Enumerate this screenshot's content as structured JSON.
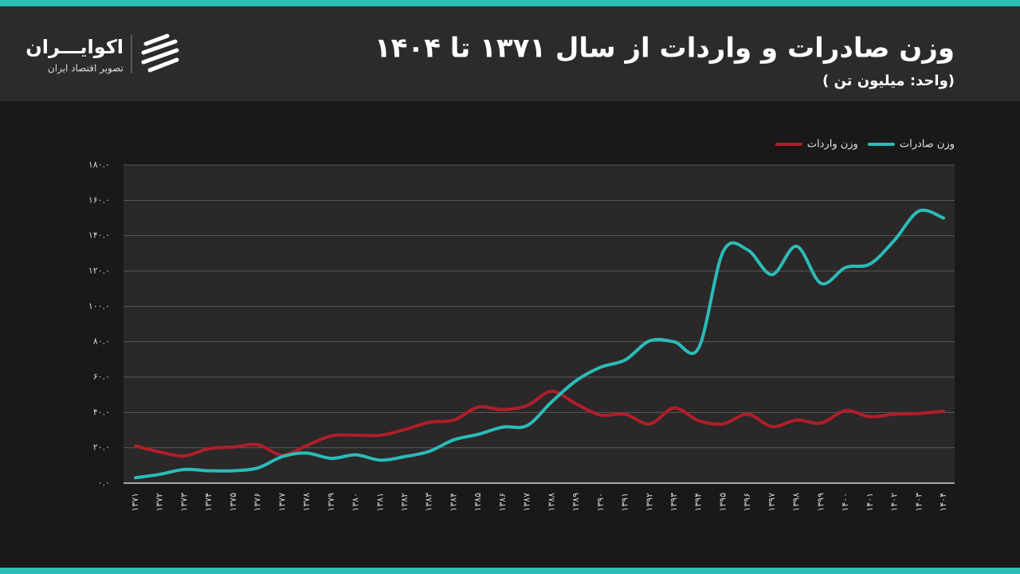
{
  "brand": {
    "name": "اکوایـــران",
    "tagline": "تصویر اقتصاد ایران"
  },
  "chart_data": {
    "type": "line",
    "title": "وزن صادرات و واردات از سال ۱۳۷۱ تا ۱۴۰۴",
    "subtitle": "( واحد: میلیون تن)",
    "categories": [
      "۱۳۷۱",
      "۱۳۷۲",
      "۱۳۷۳",
      "۱۳۷۴",
      "۱۳۷۵",
      "۱۳۷۶",
      "۱۳۷۷",
      "۱۳۷۸",
      "۱۳۷۹",
      "۱۳۸۰",
      "۱۳۸۱",
      "۱۳۸۲",
      "۱۳۸۳",
      "۱۳۸۴",
      "۱۳۸۵",
      "۱۳۸۶",
      "۱۳۸۷",
      "۱۳۸۸",
      "۱۳۸۹",
      "۱۳۹۰",
      "۱۳۹۱",
      "۱۳۹۲",
      "۱۳۹۳",
      "۱۳۹۴",
      "۱۳۹۵",
      "۱۳۹۶",
      "۱۳۹۷",
      "۱۳۹۸",
      "۱۳۹۹",
      "۱۴۰۰",
      "۱۴۰۱",
      "۱۴۰۲",
      "۱۴۰۳",
      "۱۴۰۴"
    ],
    "series": [
      {
        "name": "وزن صادرات",
        "color": "#2bbcb8",
        "values": [
          3,
          5,
          7.7,
          7,
          7,
          8.6,
          15,
          17,
          14,
          16,
          13,
          15,
          18,
          24.5,
          27.6,
          31.7,
          32.6,
          46,
          58,
          65.6,
          69.7,
          80.5,
          80,
          76.5,
          131,
          132,
          118,
          134,
          113,
          122,
          124,
          137.5,
          154,
          150
        ]
      },
      {
        "name": "وزن واردات",
        "color": "#b01e28",
        "values": [
          21,
          17.6,
          15.4,
          19.5,
          20.4,
          21.7,
          15.8,
          21.3,
          26.7,
          27.1,
          27.1,
          30.3,
          34.4,
          35.7,
          43,
          41.6,
          43.9,
          52,
          44.8,
          38.5,
          39,
          33.5,
          42.5,
          35.3,
          33.5,
          39,
          32,
          35.7,
          34,
          41,
          37.6,
          39,
          39.4,
          40.7
        ]
      }
    ],
    "ylim": [
      0,
      180
    ],
    "yticks": [
      {
        "value": 0,
        "label": "۰.۰"
      },
      {
        "value": 20,
        "label": "۲۰.۰"
      },
      {
        "value": 40,
        "label": "۴۰.۰"
      },
      {
        "value": 60,
        "label": "۶۰.۰"
      },
      {
        "value": 80,
        "label": "۸۰.۰"
      },
      {
        "value": 100,
        "label": "۱۰۰.۰"
      },
      {
        "value": 120,
        "label": "۱۲۰.۰"
      },
      {
        "value": 140,
        "label": "۱۴۰.۰"
      },
      {
        "value": 160,
        "label": "۱۶۰.۰"
      },
      {
        "value": 180,
        "label": "۱۸۰.۰"
      }
    ],
    "grid": true,
    "legend": "top-right"
  }
}
